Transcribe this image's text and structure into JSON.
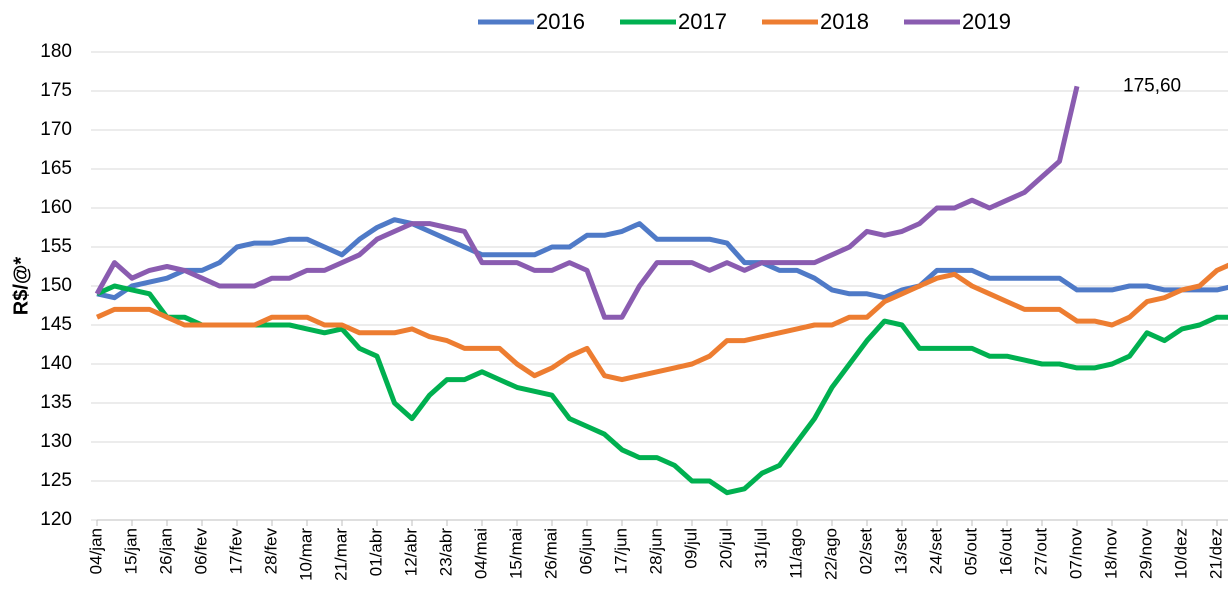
{
  "chart_data": {
    "type": "line",
    "y_label": "R$/@*",
    "categories": [
      "04/jan",
      null,
      "15/jan",
      null,
      "26/jan",
      null,
      "06/fev",
      null,
      "17/fev",
      null,
      "28/fev",
      null,
      "10/mar",
      null,
      "21/mar",
      null,
      "01/abr",
      null,
      "12/abr",
      null,
      "23/abr",
      null,
      "04/mai",
      null,
      "15/mai",
      null,
      "26/mai",
      null,
      "06/jun",
      null,
      "17/jun",
      null,
      "28/jun",
      null,
      "09/jul",
      null,
      "20/jul",
      null,
      "31/jul",
      null,
      "11/ago",
      null,
      "22/ago",
      null,
      "02/set",
      null,
      "13/set",
      null,
      "24/set",
      null,
      "05/out",
      null,
      "16/out",
      null,
      "27/out",
      null,
      "07/nov",
      null,
      "18/nov",
      null,
      "29/nov",
      null,
      "10/dez",
      null,
      "21/dez",
      null
    ],
    "series": [
      {
        "name": "2016",
        "color": "#4f7ac7",
        "values": [
          149,
          148.5,
          150,
          150.5,
          151,
          152,
          152,
          153,
          155,
          155.5,
          155.5,
          156,
          156,
          155,
          154,
          156,
          157.5,
          158.5,
          158,
          157,
          156,
          155,
          154,
          154,
          154,
          154,
          155,
          155,
          156.5,
          156.5,
          157,
          158,
          156,
          156,
          156,
          156,
          155.5,
          153,
          153,
          152,
          152,
          151,
          149.5,
          149,
          149,
          148.5,
          149.5,
          150,
          152,
          152,
          152,
          151,
          151,
          151,
          151,
          151,
          149.5,
          149.5,
          149.5,
          150,
          150,
          149.5,
          149.5,
          149.5,
          149.5,
          150
        ]
      },
      {
        "name": "2017",
        "color": "#00b050",
        "values": [
          149,
          150,
          149.5,
          149,
          146,
          146,
          145,
          145,
          145,
          145,
          145,
          145,
          144.5,
          144,
          144.5,
          142,
          141,
          135,
          133,
          136,
          138,
          138,
          139,
          138,
          137,
          136.5,
          136,
          133,
          132,
          131,
          129,
          128,
          128,
          127,
          125,
          125,
          123.5,
          124,
          126,
          127,
          130,
          133,
          137,
          140,
          143,
          145.5,
          145,
          142,
          142,
          142,
          142,
          141,
          141,
          140.5,
          140,
          140,
          139.5,
          139.5,
          140,
          141,
          144,
          143,
          144.5,
          145,
          146,
          146
        ]
      },
      {
        "name": "2018",
        "color": "#ed7d31",
        "values": [
          146,
          147,
          147,
          147,
          146,
          145,
          145,
          145,
          145,
          145,
          146,
          146,
          146,
          145,
          145,
          144,
          144,
          144,
          144.5,
          143.5,
          143,
          142,
          142,
          142,
          140,
          138.5,
          139.5,
          141,
          142,
          138.5,
          138,
          138.5,
          139,
          139.5,
          140,
          141,
          143,
          143,
          143.5,
          144,
          144.5,
          145,
          145,
          146,
          146,
          148,
          149,
          150,
          151,
          151.5,
          150,
          149,
          148,
          147,
          147,
          147,
          145.5,
          145.5,
          145,
          146,
          148,
          148.5,
          149.5,
          150,
          152,
          153
        ]
      },
      {
        "name": "2019",
        "color": "#8a5cb0",
        "values": [
          149,
          153,
          151,
          152,
          152.5,
          152,
          151,
          150,
          150,
          150,
          151,
          151,
          152,
          152,
          153,
          154,
          156,
          157,
          158,
          158,
          157.5,
          157,
          153,
          153,
          153,
          152,
          152,
          153,
          152,
          146,
          146,
          150,
          153,
          153,
          153,
          152,
          153,
          152,
          153,
          153,
          153,
          153,
          154,
          155,
          157,
          156.5,
          157,
          158,
          160,
          160,
          161,
          160,
          161,
          162,
          164,
          166,
          175.6,
          null,
          null,
          null,
          null,
          null,
          null,
          null,
          null,
          null
        ],
        "value_labels": [
          null,
          null,
          null,
          null,
          null,
          null,
          null,
          null,
          null,
          null,
          null,
          null,
          null,
          null,
          null,
          null,
          null,
          null,
          null,
          null,
          null,
          null,
          null,
          null,
          null,
          null,
          null,
          null,
          null,
          null,
          null,
          null,
          null,
          null,
          null,
          null,
          null,
          null,
          null,
          null,
          null,
          null,
          null,
          null,
          null,
          null,
          null,
          null,
          null,
          null,
          null,
          null,
          null,
          null,
          null,
          null,
          "175,60",
          null,
          null,
          null,
          null,
          null,
          null,
          null,
          null,
          null
        ]
      }
    ],
    "ylim": [
      120,
      180
    ],
    "yticks": [
      120,
      125,
      130,
      135,
      140,
      145,
      150,
      155,
      160,
      165,
      170,
      175,
      180
    ],
    "grid": true,
    "legend": "top"
  }
}
